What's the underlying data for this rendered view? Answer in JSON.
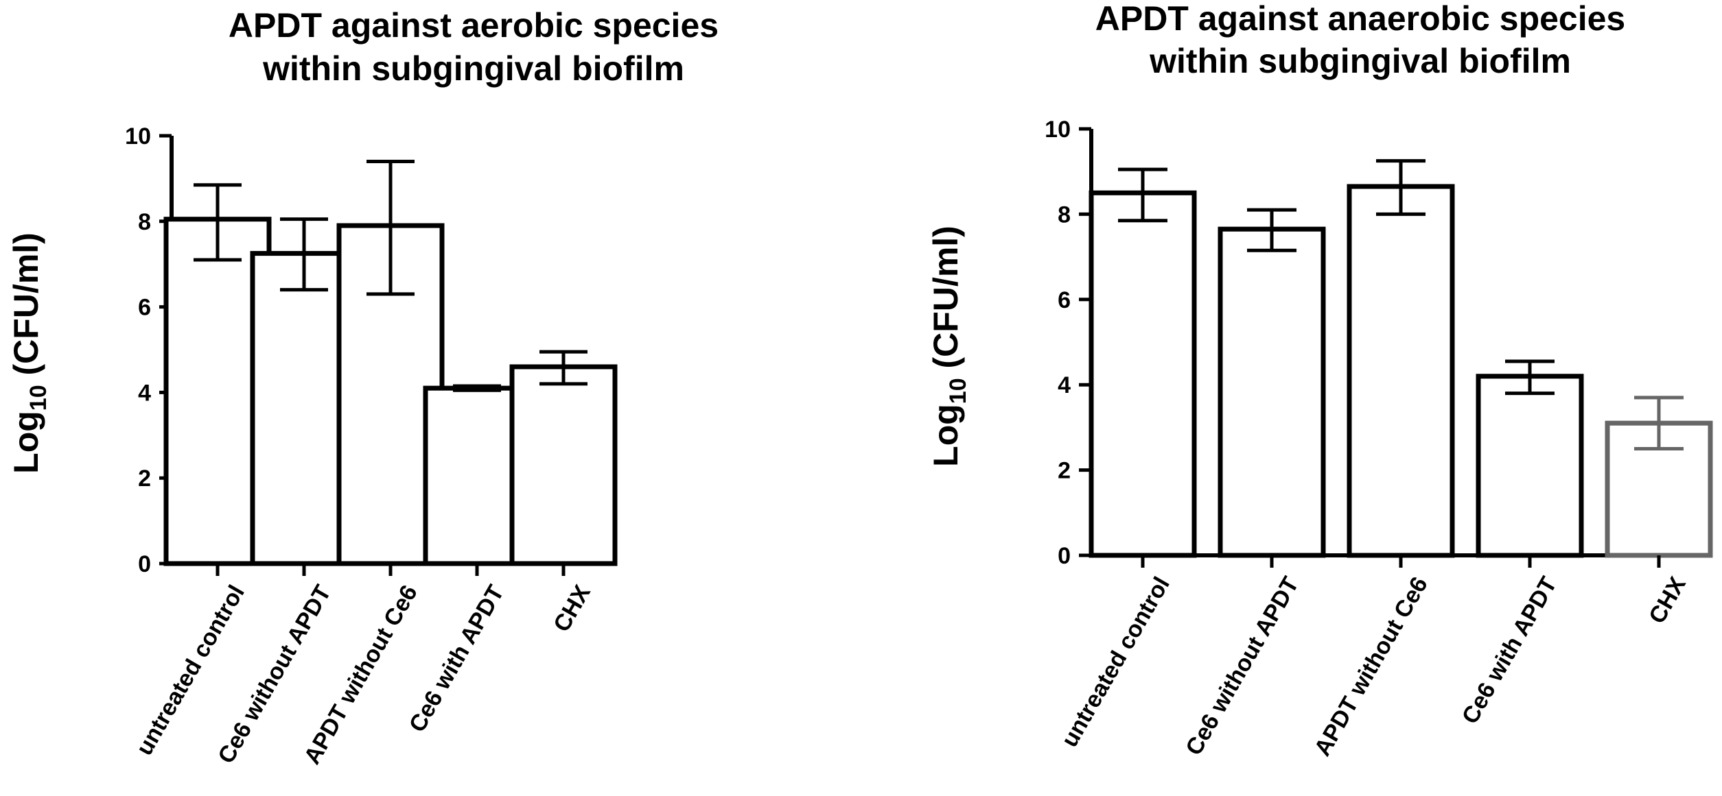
{
  "chart_data": [
    {
      "type": "bar",
      "title_lines": [
        "APDT against aerobic species",
        "within subgingival biofilm"
      ],
      "ylabel": {
        "main": "Log",
        "sub": "10",
        "rest": " (CFU/ml)"
      },
      "xlabel": "",
      "ylim": [
        0,
        10
      ],
      "yticks": [
        "0",
        "2",
        "4",
        "6",
        "8",
        "10"
      ],
      "categories": [
        "untreated control",
        "Ce6 without APDT",
        "APDT without Ce6",
        "Ce6 with APDT",
        "CHX"
      ],
      "values": [
        8.05,
        7.25,
        7.9,
        4.1,
        4.6
      ],
      "error_low": [
        7.1,
        6.4,
        6.3,
        4.05,
        4.2
      ],
      "error_high": [
        8.85,
        8.05,
        9.4,
        4.15,
        4.95
      ],
      "bar_colors": [
        "#000000",
        "#000000",
        "#000000",
        "#000000",
        "#000000"
      ]
    },
    {
      "type": "bar",
      "title_lines": [
        "APDT against anaerobic species",
        "within subgingival biofilm"
      ],
      "ylabel": {
        "main": "Log",
        "sub": "10",
        "rest": " (CFU/ml)"
      },
      "xlabel": "",
      "ylim": [
        0,
        10
      ],
      "yticks": [
        "0",
        "2",
        "4",
        "6",
        "8",
        "10"
      ],
      "categories": [
        "untreated control",
        "Ce6 without APDT",
        "APDT without Ce6",
        "Ce6 with APDT",
        "CHX"
      ],
      "values": [
        8.5,
        7.65,
        8.65,
        4.2,
        3.1
      ],
      "error_low": [
        7.85,
        7.15,
        8.0,
        3.8,
        2.5
      ],
      "error_high": [
        9.05,
        8.1,
        9.25,
        4.55,
        3.7
      ],
      "bar_colors": [
        "#000000",
        "#000000",
        "#000000",
        "#000000",
        "#666666"
      ]
    }
  ]
}
